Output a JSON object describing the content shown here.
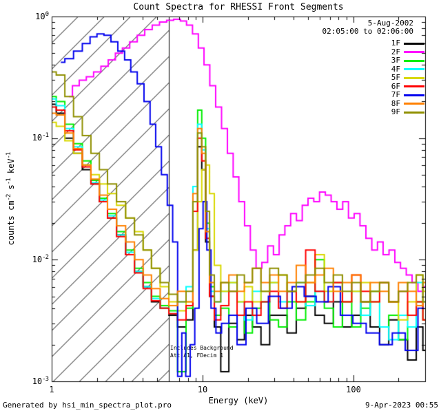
{
  "title": "Count Spectra for RHESSI Front Segments",
  "annotations": {
    "date": "5-Aug-2002",
    "time_range": "02:05:00 to 02:06:00",
    "background_note": "Includes Background",
    "config_note": "Att A1, FDecim 1"
  },
  "footer": {
    "generated_by": "Generated by hsi_min_spectra_plot.pro",
    "timestamp": "9-Apr-2023 00:55"
  },
  "axes": {
    "x": {
      "label": "Energy (keV)",
      "scale": "log",
      "ticks": [
        {
          "label": "1",
          "value": 1
        },
        {
          "label": "10",
          "value": 10
        },
        {
          "label": "100",
          "value": 100
        }
      ]
    },
    "y": {
      "scale": "log",
      "label_parts": [
        {
          "t": "counts cm",
          "sup": "-2"
        },
        {
          "t": " s",
          "sup": "-1"
        },
        {
          "t": " keV",
          "sup": "-1"
        }
      ],
      "ticks": [
        {
          "base": "10",
          "exp": "0"
        },
        {
          "base": "10",
          "exp": "-1"
        },
        {
          "base": "10",
          "exp": "-2"
        },
        {
          "base": "10",
          "exp": "-3"
        }
      ]
    }
  },
  "legend": [
    {
      "label": "1F",
      "color": "#000000"
    },
    {
      "label": "2F",
      "color": "#ff00ff"
    },
    {
      "label": "3F",
      "color": "#00ee00"
    },
    {
      "label": "4F",
      "color": "#00ffff"
    },
    {
      "label": "5F",
      "color": "#d8d800"
    },
    {
      "label": "6F",
      "color": "#ff0000"
    },
    {
      "label": "7F",
      "color": "#0000ee"
    },
    {
      "label": "8F",
      "color": "#ff8000"
    },
    {
      "label": "9F",
      "color": "#8f8f00"
    }
  ],
  "chart_data": {
    "type": "line",
    "line_style": "steps",
    "title": "Count Spectra for RHESSI Front Segments",
    "xlabel": "Energy (keV)",
    "ylabel": "counts cm^-2 s^-1 keV^-1",
    "xlim": [
      1,
      300
    ],
    "ylim": [
      0.001,
      1
    ],
    "xscale": "log",
    "yscale": "log",
    "vline_kev": 6,
    "hatch_region": [
      1,
      6
    ],
    "legend_position": "top-right-inside",
    "grid": false,
    "series": [
      {
        "name": "1F",
        "color": "#000000",
        "x": [
          1.0,
          1.15,
          1.3,
          1.5,
          1.7,
          1.95,
          2.2,
          2.5,
          2.9,
          3.3,
          3.8,
          4.3,
          4.9,
          5.6,
          6.4,
          7.3,
          8.3,
          9.0,
          9.6,
          10.2,
          10.8,
          11.5,
          12.5,
          14,
          16,
          18,
          20,
          23,
          26,
          30,
          34,
          39,
          45,
          52,
          60,
          69,
          79,
          91,
          105,
          120,
          140,
          160,
          185,
          215,
          245,
          280,
          300
        ],
        "y": [
          0.19,
          0.16,
          0.1,
          0.075,
          0.055,
          0.042,
          0.03,
          0.022,
          0.016,
          0.011,
          0.008,
          0.006,
          0.0045,
          0.004,
          0.0035,
          0.0028,
          0.0032,
          0.012,
          0.085,
          0.055,
          0.014,
          0.005,
          0.0028,
          0.0012,
          0.003,
          0.0022,
          0.0035,
          0.0028,
          0.002,
          0.0035,
          0.0035,
          0.0025,
          0.004,
          0.005,
          0.0035,
          0.003,
          0.0045,
          0.0028,
          0.0035,
          0.0045,
          0.0028,
          0.002,
          0.0032,
          0.0022,
          0.0015,
          0.0028,
          0.0018
        ]
      },
      {
        "name": "2F",
        "color": "#ff00ff",
        "x": [
          1.3,
          1.45,
          1.6,
          1.8,
          2.0,
          2.25,
          2.5,
          2.8,
          3.1,
          3.5,
          3.9,
          4.4,
          4.9,
          5.5,
          6.1,
          6.8,
          7.5,
          8.2,
          9.0,
          9.8,
          10.7,
          11.7,
          12.8,
          14.0,
          15.3,
          16.7,
          18.2,
          19.9,
          21.7,
          23.7,
          25.9,
          28.3,
          30.9,
          33.7,
          36.8,
          40.2,
          43.9,
          48.0,
          52.4,
          57.2,
          62.5,
          68.3,
          74.6,
          81.5,
          89.0,
          97.2,
          106,
          116,
          127,
          139,
          151,
          165,
          181,
          197,
          215,
          235,
          257,
          281,
          300
        ],
        "y": [
          0.22,
          0.27,
          0.3,
          0.32,
          0.35,
          0.39,
          0.44,
          0.5,
          0.55,
          0.62,
          0.7,
          0.78,
          0.85,
          0.9,
          0.93,
          0.95,
          0.92,
          0.85,
          0.72,
          0.55,
          0.4,
          0.27,
          0.18,
          0.12,
          0.075,
          0.048,
          0.03,
          0.019,
          0.012,
          0.0085,
          0.0095,
          0.013,
          0.011,
          0.016,
          0.019,
          0.024,
          0.021,
          0.028,
          0.032,
          0.03,
          0.036,
          0.034,
          0.03,
          0.026,
          0.03,
          0.022,
          0.024,
          0.019,
          0.015,
          0.012,
          0.014,
          0.011,
          0.012,
          0.0095,
          0.0085,
          0.0075,
          0.0065,
          0.0055,
          0.006
        ]
      },
      {
        "name": "3F",
        "color": "#00ee00",
        "x": [
          1.0,
          1.15,
          1.3,
          1.5,
          1.7,
          1.95,
          2.2,
          2.5,
          2.9,
          3.3,
          3.8,
          4.3,
          4.9,
          5.6,
          6.4,
          7.3,
          8.3,
          9.0,
          9.6,
          10.2,
          10.8,
          11.5,
          12.5,
          14,
          16,
          18,
          20,
          23,
          26,
          30,
          34,
          39,
          45,
          52,
          60,
          69,
          79,
          91,
          105,
          120,
          140,
          160,
          185,
          215,
          245,
          280,
          300
        ],
        "y": [
          0.22,
          0.2,
          0.13,
          0.09,
          0.065,
          0.045,
          0.032,
          0.024,
          0.017,
          0.012,
          0.0085,
          0.0065,
          0.005,
          0.0042,
          0.0038,
          0.0012,
          0.004,
          0.03,
          0.17,
          0.1,
          0.02,
          0.006,
          0.0035,
          0.004,
          0.0028,
          0.0035,
          0.0025,
          0.004,
          0.0045,
          0.0032,
          0.0028,
          0.0045,
          0.0032,
          0.0045,
          0.01,
          0.004,
          0.0028,
          0.0045,
          0.0028,
          0.004,
          0.0055,
          0.0028,
          0.0035,
          0.0022,
          0.0028,
          0.0045,
          0.0032
        ]
      },
      {
        "name": "4F",
        "color": "#00ffff",
        "x": [
          1.0,
          1.15,
          1.3,
          1.5,
          1.7,
          1.95,
          2.2,
          2.5,
          2.9,
          3.3,
          3.8,
          4.3,
          4.9,
          5.6,
          6.4,
          7.3,
          8.3,
          9.0,
          9.6,
          10.2,
          10.8,
          11.5,
          12.5,
          14,
          16,
          18,
          20,
          23,
          26,
          30,
          34,
          39,
          45,
          52,
          60,
          69,
          79,
          91,
          105,
          120,
          140,
          160,
          185,
          215,
          245,
          280,
          300
        ],
        "y": [
          0.21,
          0.185,
          0.12,
          0.085,
          0.06,
          0.043,
          0.031,
          0.023,
          0.016,
          0.0115,
          0.008,
          0.006,
          0.0048,
          0.004,
          0.0036,
          0.0045,
          0.006,
          0.04,
          0.13,
          0.08,
          0.018,
          0.0055,
          0.0045,
          0.0055,
          0.0065,
          0.0045,
          0.0032,
          0.0055,
          0.0045,
          0.0065,
          0.0045,
          0.0055,
          0.0065,
          0.0042,
          0.0055,
          0.0045,
          0.0065,
          0.0045,
          0.0055,
          0.0035,
          0.0045,
          0.0028,
          0.0022,
          0.0035,
          0.0028,
          0.0065,
          0.0045
        ]
      },
      {
        "name": "5F",
        "color": "#d8d800",
        "x": [
          1.0,
          1.15,
          1.3,
          1.5,
          1.7,
          1.95,
          2.2,
          2.5,
          2.9,
          3.3,
          3.8,
          4.3,
          4.9,
          5.6,
          6.4,
          7.3,
          8.3,
          9.0,
          9.6,
          10.2,
          10.8,
          11.5,
          12.5,
          14,
          16,
          18,
          20,
          23,
          26,
          30,
          34,
          39,
          45,
          52,
          60,
          69,
          79,
          91,
          105,
          120,
          140,
          160,
          185,
          215,
          245,
          280,
          300
        ],
        "y": [
          0.135,
          0.125,
          0.095,
          0.075,
          0.06,
          0.05,
          0.042,
          0.035,
          0.028,
          0.022,
          0.017,
          0.012,
          0.0085,
          0.006,
          0.0045,
          0.0038,
          0.0045,
          0.012,
          0.03,
          0.055,
          0.06,
          0.035,
          0.009,
          0.0055,
          0.0065,
          0.0045,
          0.006,
          0.0045,
          0.0055,
          0.0065,
          0.0075,
          0.0055,
          0.0045,
          0.0065,
          0.011,
          0.0055,
          0.0065,
          0.0045,
          0.0055,
          0.0065,
          0.0045,
          0.0065,
          0.0045,
          0.0032,
          0.0045,
          0.0075,
          0.0055
        ]
      },
      {
        "name": "6F",
        "color": "#ff0000",
        "x": [
          1.0,
          1.15,
          1.3,
          1.5,
          1.7,
          1.95,
          2.2,
          2.5,
          2.9,
          3.3,
          3.8,
          4.3,
          4.9,
          5.6,
          6.4,
          7.3,
          8.3,
          9.0,
          9.6,
          10.2,
          10.8,
          11.5,
          12.5,
          14,
          16,
          18,
          20,
          23,
          26,
          30,
          34,
          39,
          45,
          52,
          60,
          69,
          79,
          91,
          105,
          120,
          140,
          160,
          185,
          215,
          245,
          280,
          300
        ],
        "y": [
          0.18,
          0.17,
          0.115,
          0.08,
          0.058,
          0.042,
          0.03,
          0.022,
          0.0155,
          0.011,
          0.0078,
          0.0058,
          0.0046,
          0.004,
          0.0036,
          0.0032,
          0.0042,
          0.025,
          0.1,
          0.065,
          0.015,
          0.005,
          0.0032,
          0.0042,
          0.0055,
          0.0035,
          0.0045,
          0.0035,
          0.0045,
          0.0055,
          0.004,
          0.0055,
          0.0045,
          0.012,
          0.0055,
          0.0045,
          0.0065,
          0.0045,
          0.0075,
          0.0055,
          0.0045,
          0.0065,
          0.0045,
          0.0055,
          0.0035,
          0.0045,
          0.0032
        ]
      },
      {
        "name": "7F",
        "color": "#0000ee",
        "x": [
          1.15,
          1.3,
          1.5,
          1.7,
          1.9,
          2.1,
          2.35,
          2.6,
          2.9,
          3.2,
          3.5,
          3.9,
          4.3,
          4.7,
          5.1,
          5.6,
          6.1,
          6.6,
          7.1,
          7.5,
          8.0,
          8.6,
          9.2,
          9.8,
          10.4,
          11.0,
          11.8,
          12.8,
          14,
          16,
          18,
          21,
          25,
          30,
          36,
          43,
          52,
          62,
          75,
          90,
          110,
          135,
          165,
          200,
          245,
          295
        ],
        "y": [
          0.42,
          0.45,
          0.52,
          0.6,
          0.68,
          0.72,
          0.7,
          0.62,
          0.52,
          0.44,
          0.35,
          0.28,
          0.2,
          0.13,
          0.085,
          0.05,
          0.028,
          0.014,
          0.0011,
          0.0025,
          0.0011,
          0.002,
          0.004,
          0.018,
          0.03,
          0.012,
          0.004,
          0.0025,
          0.003,
          0.0035,
          0.002,
          0.004,
          0.003,
          0.005,
          0.004,
          0.006,
          0.005,
          0.0045,
          0.006,
          0.0035,
          0.003,
          0.0025,
          0.002,
          0.0025,
          0.0018,
          0.004
        ]
      },
      {
        "name": "8F",
        "color": "#ff8000",
        "x": [
          1.0,
          1.15,
          1.3,
          1.5,
          1.7,
          1.95,
          2.2,
          2.5,
          2.9,
          3.3,
          3.8,
          4.3,
          4.9,
          5.6,
          6.4,
          7.3,
          8.3,
          9.0,
          9.6,
          10.2,
          10.8,
          11.5,
          12.5,
          14,
          16,
          18,
          20,
          23,
          26,
          30,
          34,
          39,
          45,
          52,
          60,
          69,
          79,
          91,
          105,
          120,
          140,
          160,
          185,
          215,
          245,
          280,
          300
        ],
        "y": [
          0.16,
          0.155,
          0.11,
          0.082,
          0.06,
          0.046,
          0.034,
          0.026,
          0.019,
          0.014,
          0.01,
          0.0075,
          0.0058,
          0.0048,
          0.0042,
          0.0055,
          0.0045,
          0.035,
          0.12,
          0.075,
          0.017,
          0.0065,
          0.0055,
          0.0065,
          0.0075,
          0.0055,
          0.0065,
          0.0085,
          0.0065,
          0.0075,
          0.0055,
          0.0065,
          0.009,
          0.0065,
          0.0075,
          0.0085,
          0.0055,
          0.0065,
          0.0075,
          0.0045,
          0.0065,
          0.0055,
          0.0045,
          0.0065,
          0.0055,
          0.0042,
          0.0065
        ]
      },
      {
        "name": "9F",
        "color": "#8f8f00",
        "x": [
          1.0,
          1.15,
          1.3,
          1.5,
          1.7,
          1.95,
          2.2,
          2.5,
          2.9,
          3.3,
          3.8,
          4.3,
          4.9,
          5.6,
          6.4,
          7.3,
          8.3,
          9.0,
          9.6,
          10.2,
          10.8,
          11.5,
          12.5,
          14,
          16,
          18,
          20,
          23,
          26,
          30,
          34,
          39,
          45,
          52,
          60,
          69,
          79,
          91,
          105,
          120,
          140,
          160,
          185,
          215,
          245,
          280,
          300
        ],
        "y": [
          0.35,
          0.33,
          0.22,
          0.15,
          0.105,
          0.075,
          0.055,
          0.042,
          0.03,
          0.022,
          0.016,
          0.012,
          0.0085,
          0.0065,
          0.0052,
          0.0045,
          0.0055,
          0.03,
          0.11,
          0.085,
          0.025,
          0.0075,
          0.0045,
          0.0065,
          0.0055,
          0.0075,
          0.0065,
          0.0085,
          0.0055,
          0.0085,
          0.0075,
          0.0055,
          0.0065,
          0.0075,
          0.0085,
          0.0065,
          0.0075,
          0.0055,
          0.0065,
          0.0045,
          0.0055,
          0.0065,
          0.0045,
          0.0055,
          0.0065,
          0.0075,
          0.0045
        ]
      }
    ]
  }
}
